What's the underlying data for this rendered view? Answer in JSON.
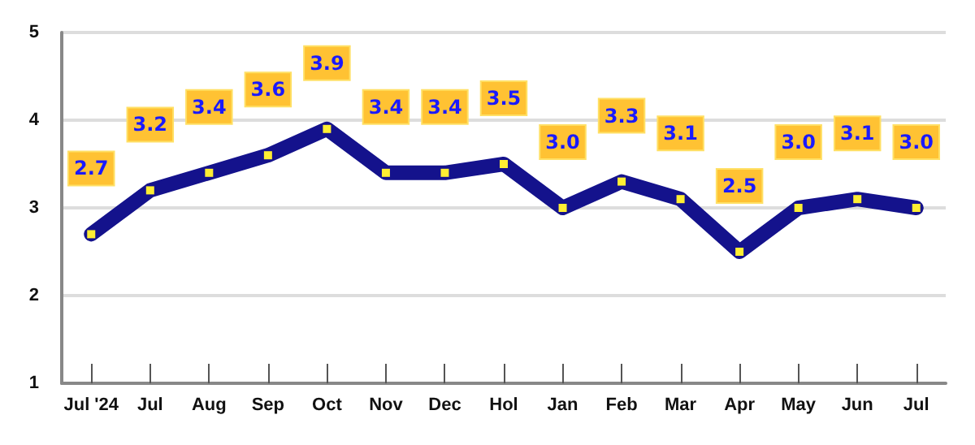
{
  "chart_data": {
    "type": "line",
    "categories": [
      "Jul '24",
      "Jul",
      "Aug",
      "Sep",
      "Oct",
      "Nov",
      "Dec",
      "Hol",
      "Jan",
      "Feb",
      "Mar",
      "Apr",
      "May",
      "Jun",
      "Jul"
    ],
    "values": [
      2.7,
      3.2,
      3.4,
      3.6,
      3.9,
      3.4,
      3.4,
      3.5,
      3.0,
      3.3,
      3.1,
      2.5,
      3.0,
      3.1,
      3.0
    ],
    "value_labels": [
      "2.7",
      "3.2",
      "3.4",
      "3.6",
      "3.9",
      "3.4",
      "3.4",
      "3.5",
      "3.0",
      "3.3",
      "3.1",
      "2.5",
      "3.0",
      "3.1",
      "3.0"
    ],
    "color": "#14128c",
    "ylim": [
      1,
      5
    ],
    "yticks": [
      1,
      2,
      3,
      4,
      5
    ],
    "grid": "y",
    "marker": "square",
    "line_style": "solid"
  }
}
